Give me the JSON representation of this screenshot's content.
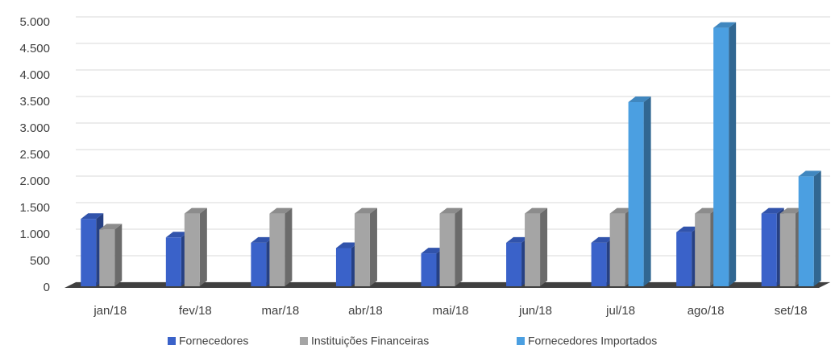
{
  "chart_data": {
    "type": "bar",
    "categories": [
      "jan/18",
      "fev/18",
      "mar/18",
      "abr/18",
      "mai/18",
      "jun/18",
      "jul/18",
      "ago/18",
      "set/18"
    ],
    "series": [
      {
        "name": "Fornecedores",
        "color": "#3a62c9",
        "values": [
          1300,
          950,
          850,
          750,
          650,
          850,
          850,
          1050,
          1400
        ]
      },
      {
        "name": "Instituições Financeiras",
        "color": "#a5a5a5",
        "values": [
          1100,
          1400,
          1400,
          1400,
          1400,
          1400,
          1400,
          1400,
          1400
        ]
      },
      {
        "name": "Fornecedores Importados",
        "color": "#4b9fe1",
        "values": [
          null,
          null,
          null,
          null,
          null,
          null,
          3500,
          4900,
          2100
        ]
      }
    ],
    "ylim": [
      0,
      5000
    ],
    "yticks": [
      0,
      500,
      {
        "value": 1000,
        "label": "1.000"
      },
      {
        "value": 1500,
        "label": "1.500"
      },
      {
        "value": 2000,
        "label": "2.000"
      },
      {
        "value": 2500,
        "label": "2.500"
      },
      {
        "value": 3000,
        "label": "3.000"
      },
      {
        "value": 3500,
        "label": "3.500"
      },
      {
        "value": 4000,
        "label": "4.000"
      },
      {
        "value": 4500,
        "label": "4.500"
      },
      {
        "value": 5000,
        "label": "5.000"
      }
    ],
    "grid": true,
    "legend": "bottom"
  }
}
